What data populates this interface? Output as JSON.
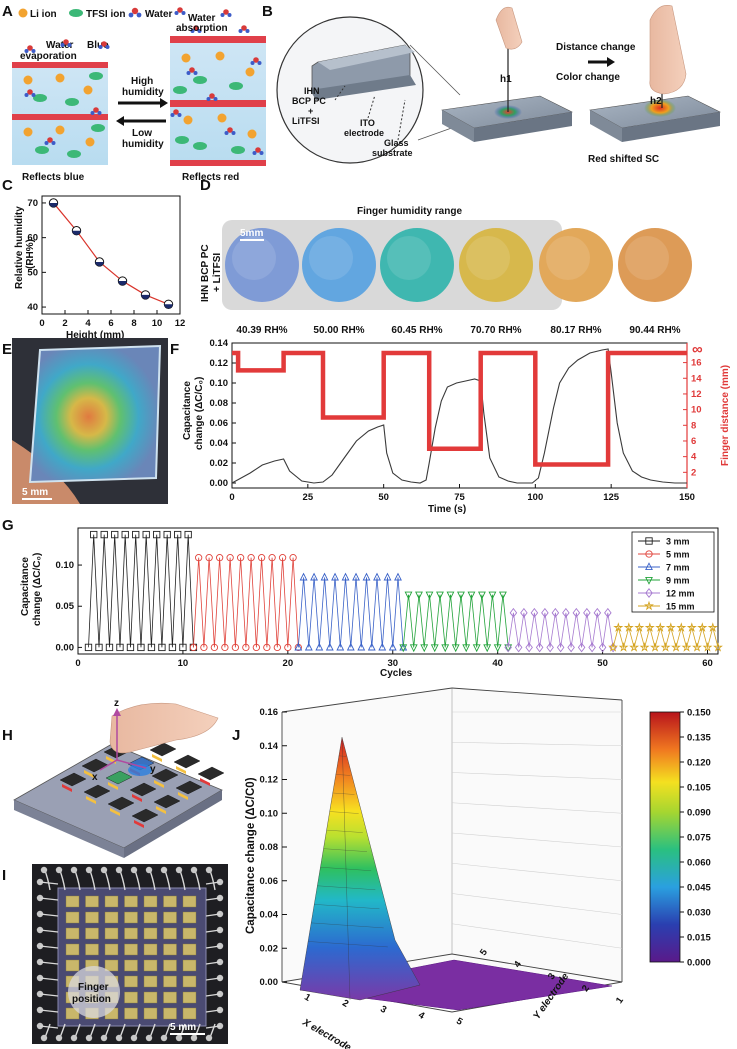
{
  "panel_labels": {
    "a": "A",
    "b": "B",
    "c": "C",
    "d": "D",
    "e": "E",
    "f": "F",
    "g": "G",
    "h": "H",
    "i": "I",
    "j": "J"
  },
  "panel_a": {
    "legend": {
      "li": "Li ion",
      "tfsi": "TFSI ion",
      "water": "Water"
    },
    "water_evaporation": "Water evaporation",
    "blue": "Blue",
    "water_absorption": "Water absorption",
    "high_humidity": "High humidity",
    "low_humidity": "Low humidity",
    "reflects_blue": "Reflects blue",
    "reflects_red": "Reflects red"
  },
  "panel_b": {
    "layer_ihn": "IHN BCP PC + LiTFSI",
    "layer_ito": "ITO electrode",
    "layer_glass": "Glass substrate",
    "distance_change": "Distance change",
    "color_change": "Color change",
    "h1": "h1",
    "h2": "h2",
    "red_shifted": "Red shifted SC"
  },
  "panel_d": {
    "title": "Finger humidity range",
    "side_label": "IHN BCP PC + LiTFSI",
    "scale": "5mm",
    "samples": [
      {
        "label": "40.39 RH%",
        "color": "#7f9bd6"
      },
      {
        "label": "50.00 RH%",
        "color": "#62a6e0"
      },
      {
        "label": "60.45 RH%",
        "color": "#3fb7b0"
      },
      {
        "label": "70.70 RH%",
        "color": "#d7b84c"
      },
      {
        "label": "80.17 RH%",
        "color": "#e2a85a"
      },
      {
        "label": "90.44 RH%",
        "color": "#dd9b57"
      }
    ]
  },
  "panel_e": {
    "scale": "5 mm"
  },
  "panel_f": {
    "infinity": "∞"
  },
  "panel_g": {},
  "panel_h": {
    "z": "z",
    "x": "x",
    "y": "y"
  },
  "panel_i": {
    "finger": "Finger position",
    "scale": "5 mm"
  },
  "chart_data": [
    {
      "id": "C",
      "type": "scatter",
      "x": [
        1,
        3,
        5,
        7,
        9,
        11
      ],
      "y": [
        70,
        62,
        53,
        47.5,
        43.5,
        40.8
      ],
      "xlabel": "Height (mm)",
      "ylabel": "Relative humidity (RH%)",
      "xlim": [
        0,
        12
      ],
      "ylim": [
        38,
        72
      ],
      "xticks": [
        0,
        2,
        4,
        6,
        8,
        10,
        12
      ],
      "yticks": [
        40,
        50,
        60,
        70
      ]
    },
    {
      "id": "F",
      "type": "line",
      "xlabel": "Time (s)",
      "ylabel": "Capacitance change (ΔC/C₀)",
      "ylabel_right": "Finger distance (mm)",
      "xlim": [
        0,
        150
      ],
      "ylim": [
        -0.005,
        0.14
      ],
      "ylim_right": [
        0,
        18.5
      ],
      "xticks": [
        0,
        25,
        50,
        75,
        100,
        125,
        150
      ],
      "yticks": [
        0.0,
        0.02,
        0.04,
        0.06,
        0.08,
        0.1,
        0.12,
        0.14
      ],
      "yticks_right": [
        2,
        4,
        6,
        8,
        10,
        12,
        14,
        16
      ],
      "capacitance": {
        "x": [
          0,
          3,
          6,
          10,
          14,
          17,
          19,
          23,
          27,
          30,
          33,
          37,
          41,
          45,
          48,
          50,
          51,
          53,
          56,
          59,
          62,
          64,
          65,
          67,
          69,
          71,
          74,
          77,
          80,
          82,
          83,
          85,
          88,
          91,
          94,
          97,
          99,
          101,
          103,
          106,
          108,
          111,
          114,
          118,
          122,
          124,
          125,
          127,
          129,
          132,
          135,
          138,
          142,
          146,
          150
        ],
        "y": [
          0.0,
          0.005,
          0.01,
          0.018,
          0.022,
          0.024,
          0.012,
          0.002,
          0.0,
          0.001,
          0.008,
          0.025,
          0.042,
          0.052,
          0.056,
          0.058,
          0.03,
          0.01,
          0.003,
          0.001,
          0.0,
          0.003,
          0.02,
          0.055,
          0.082,
          0.096,
          0.1,
          0.102,
          0.104,
          0.102,
          0.07,
          0.025,
          0.006,
          0.002,
          0.0,
          0.0,
          0.0,
          0.005,
          0.03,
          0.075,
          0.1,
          0.115,
          0.123,
          0.13,
          0.133,
          0.134,
          0.11,
          0.06,
          0.03,
          0.012,
          0.006,
          0.003,
          0.001,
          0.0,
          0.0
        ]
      },
      "finger_distance": {
        "x": [
          0,
          2,
          2,
          17,
          17,
          30,
          30,
          50,
          50,
          65,
          65,
          82,
          82,
          100,
          100,
          124,
          124,
          150
        ],
        "y": [
          "inf",
          "inf",
          15,
          15,
          "inf",
          "inf",
          9,
          9,
          "inf",
          "inf",
          5,
          5,
          "inf",
          "inf",
          3,
          3,
          "inf",
          "inf"
        ]
      }
    },
    {
      "id": "G",
      "type": "line",
      "xlabel": "Cycles",
      "ylabel": "Capacitance change (ΔC/C₀)",
      "xlim": [
        0,
        61
      ],
      "ylim": [
        -0.008,
        0.145
      ],
      "xticks": [
        0,
        10,
        20,
        30,
        40,
        50,
        60
      ],
      "yticks": [
        0.0,
        0.05,
        0.1
      ],
      "series": [
        {
          "name": "3 mm",
          "peak": 0.137,
          "color": "#222222",
          "marker": "square"
        },
        {
          "name": "5 mm",
          "peak": 0.109,
          "color": "#e0443c",
          "marker": "circle"
        },
        {
          "name": "7 mm",
          "peak": 0.085,
          "color": "#3a62c8",
          "marker": "triangle-up"
        },
        {
          "name": "9 mm",
          "peak": 0.064,
          "color": "#22a33a",
          "marker": "triangle-down"
        },
        {
          "name": "12 mm",
          "peak": 0.042,
          "color": "#a77bd0",
          "marker": "diamond"
        },
        {
          "name": "15 mm",
          "peak": 0.024,
          "color": "#d4a320",
          "marker": "star"
        }
      ]
    },
    {
      "id": "J",
      "type": "surface3d",
      "xlabel": "X electrode",
      "ylabel": "Y electrode",
      "zlabel": "Capacitance change (ΔC/C0)",
      "zlim": [
        0,
        0.16
      ],
      "zticks": [
        0.0,
        0.02,
        0.04,
        0.06,
        0.08,
        0.1,
        0.12,
        0.14,
        0.16
      ],
      "xticks": [
        1,
        2,
        3,
        4,
        5
      ],
      "yticks": [
        1,
        2,
        3,
        4,
        5
      ],
      "colorbar": {
        "min": 0.0,
        "max": 0.15,
        "ticks": [
          "0.000",
          "0.015",
          "0.030",
          "0.045",
          "0.060",
          "0.075",
          "0.090",
          "0.105",
          "0.120",
          "0.135",
          "0.150"
        ]
      },
      "peak": {
        "x": 1,
        "y": 1,
        "value": 0.145
      }
    }
  ]
}
